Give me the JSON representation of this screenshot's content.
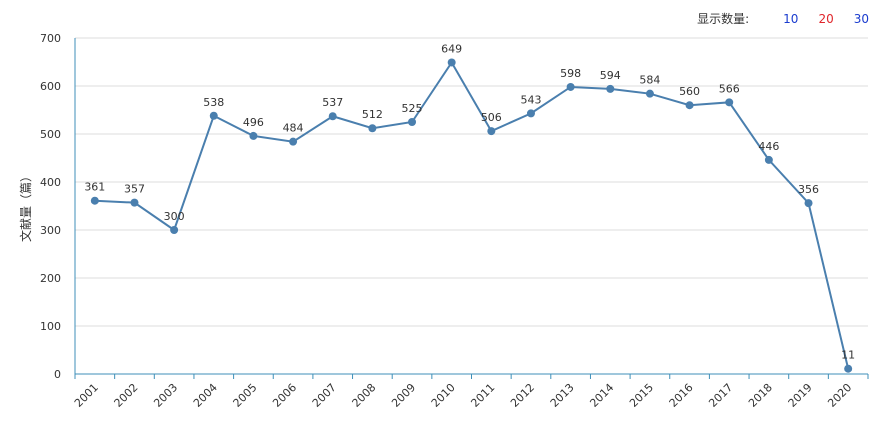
{
  "controls": {
    "label": "显示数量:",
    "options": [
      {
        "text": "10",
        "color": "#1a3ccf"
      },
      {
        "text": "20",
        "color": "#e0262b"
      },
      {
        "text": "30",
        "color": "#1a3ccf"
      }
    ]
  },
  "chart_data": {
    "type": "line",
    "title": "",
    "xlabel": "",
    "ylabel": "文献量（篇）",
    "ylim": [
      0,
      700
    ],
    "yticks": [
      0,
      100,
      200,
      300,
      400,
      500,
      600,
      700
    ],
    "grid": true,
    "line_color": "#4a7fae",
    "categories": [
      "2001",
      "2002",
      "2003",
      "2004",
      "2005",
      "2006",
      "2007",
      "2008",
      "2009",
      "2010",
      "2011",
      "2012",
      "2013",
      "2014",
      "2015",
      "2016",
      "2017",
      "2018",
      "2019",
      "2020"
    ],
    "series": [
      {
        "values": [
          361,
          357,
          300,
          538,
          496,
          484,
          537,
          512,
          525,
          649,
          506,
          543,
          598,
          594,
          584,
          560,
          566,
          446,
          356,
          11
        ]
      }
    ]
  }
}
